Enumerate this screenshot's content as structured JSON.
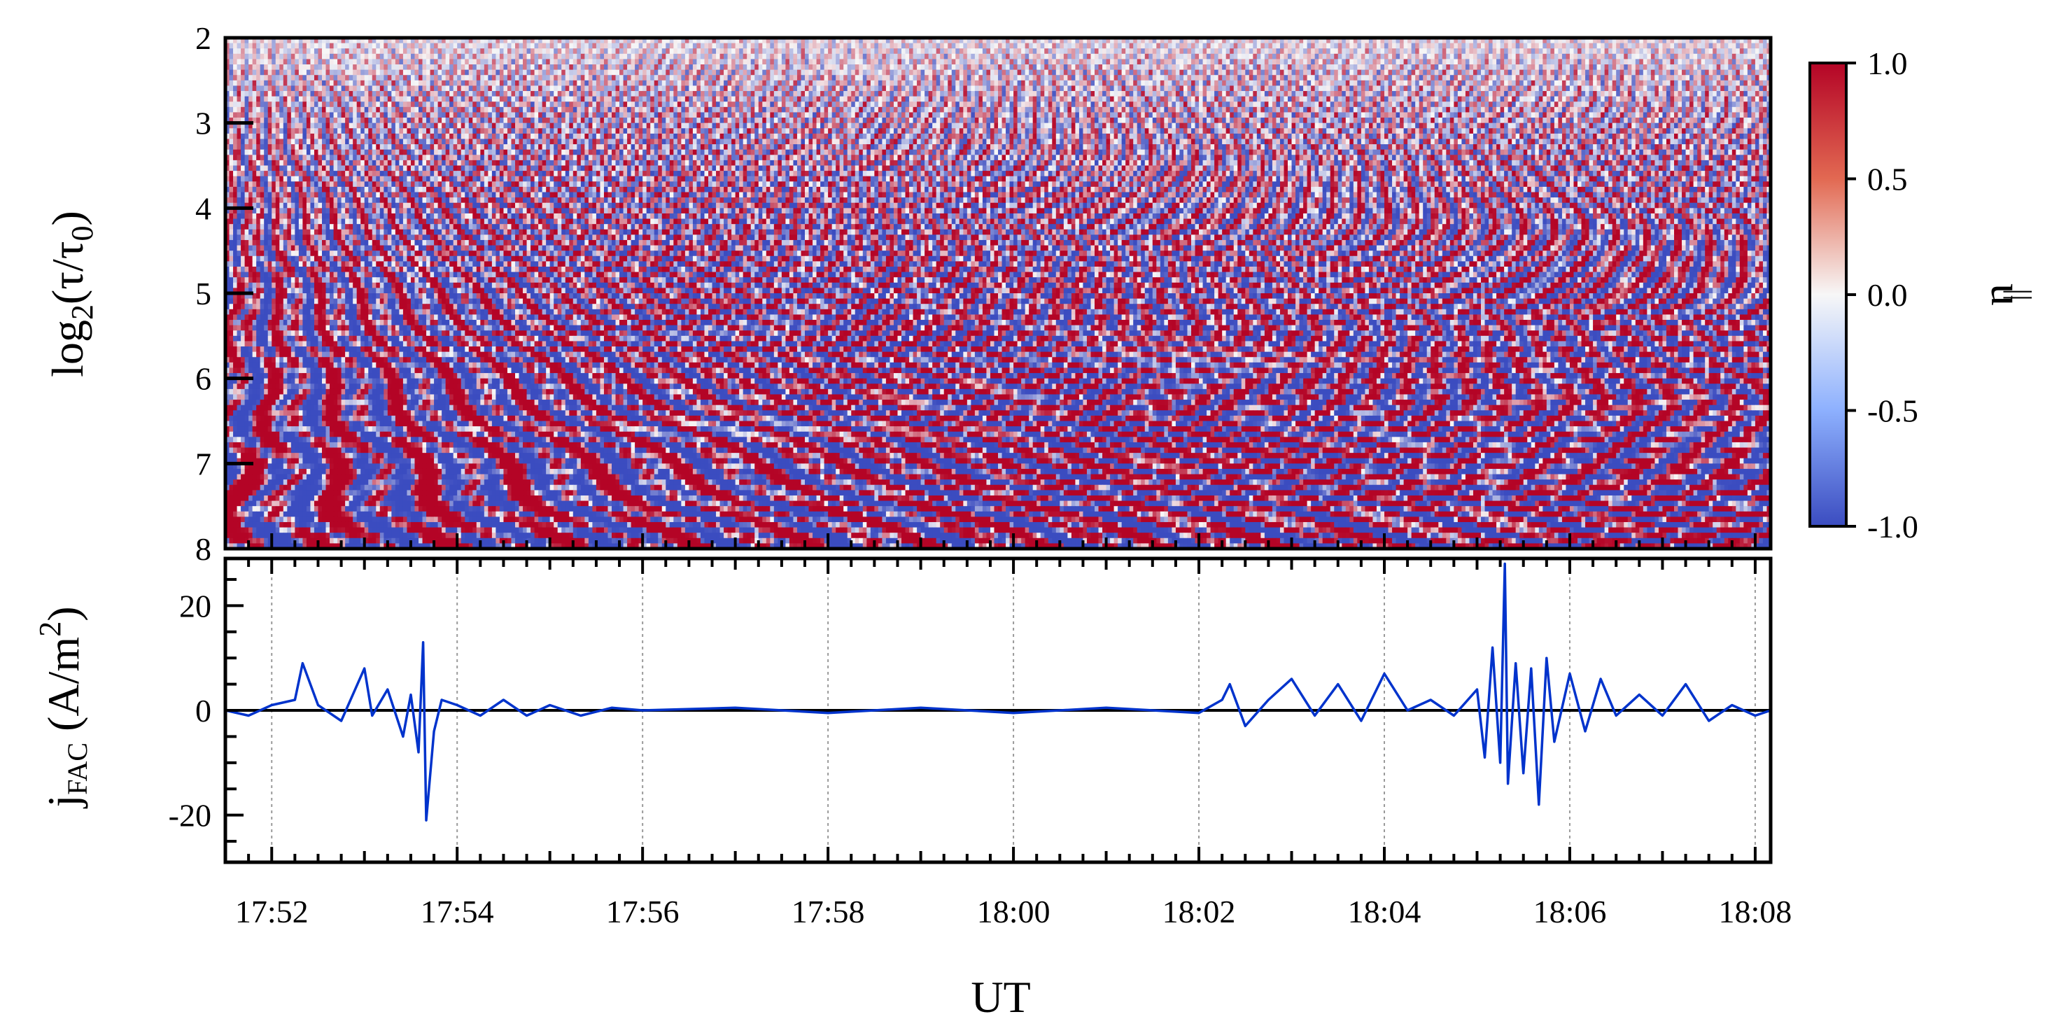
{
  "chart_data": [
    {
      "type": "heatmap",
      "title": "",
      "ylabel_main": "log",
      "ylabel_sub": "2",
      "ylabel_tail_open": "(τ/τ",
      "ylabel_tail_sub": "0",
      "ylabel_tail_close": ")",
      "yticks": [
        "2",
        "3",
        "4",
        "5",
        "6",
        "7",
        "8"
      ],
      "ylim": [
        2,
        8
      ],
      "y_inverted": true,
      "xlim": [
        "17:51:30",
        "18:08:10"
      ],
      "colorbar": {
        "label": "u",
        "label_mark": "||",
        "ticks": [
          "1.0",
          "0.5",
          "0.0",
          "-0.5",
          "-1.0"
        ],
        "range": [
          -1.0,
          1.0
        ],
        "colors": [
          "#3b4cc0",
          "#f7f7f7",
          "#b40426"
        ]
      }
    },
    {
      "type": "line",
      "title": "",
      "ylabel_main": "j",
      "ylabel_sub": "FAC",
      "ylabel_unit": "(A/m",
      "ylabel_sup": "2",
      "ylabel_close": ")",
      "xlabel": "UT",
      "xticks": [
        "17:52",
        "17:54",
        "17:56",
        "17:58",
        "18:00",
        "18:02",
        "18:04",
        "18:06",
        "18:08"
      ],
      "xlim": [
        "17:51:30",
        "18:08:10"
      ],
      "yticks": [
        "20",
        "0",
        "-20"
      ],
      "ylim": [
        -29,
        29
      ],
      "grid": "vertical dotted at major ticks",
      "color": "#0033cc",
      "series": [
        {
          "x": [
            "17:51:30",
            "17:51:45",
            "17:52:00",
            "17:52:15",
            "17:52:20",
            "17:52:30",
            "17:52:45",
            "17:53:00",
            "17:53:05",
            "17:53:15",
            "17:53:25",
            "17:53:30",
            "17:53:35",
            "17:53:38",
            "17:53:40",
            "17:53:45",
            "17:53:50",
            "17:54:00",
            "17:54:15",
            "17:54:30",
            "17:54:45",
            "17:55:00",
            "17:55:20",
            "17:55:40",
            "17:56:00",
            "17:57:00",
            "17:58:00",
            "17:59:00",
            "18:00:00",
            "18:01:00",
            "18:02:00",
            "18:02:15",
            "18:02:20",
            "18:02:30",
            "18:02:45",
            "18:03:00",
            "18:03:15",
            "18:03:30",
            "18:03:45",
            "18:04:00",
            "18:04:15",
            "18:04:30",
            "18:04:45",
            "18:05:00",
            "18:05:05",
            "18:05:10",
            "18:05:15",
            "18:05:18",
            "18:05:20",
            "18:05:25",
            "18:05:30",
            "18:05:35",
            "18:05:40",
            "18:05:45",
            "18:05:50",
            "18:06:00",
            "18:06:10",
            "18:06:20",
            "18:06:30",
            "18:06:45",
            "18:07:00",
            "18:07:15",
            "18:07:30",
            "18:07:45",
            "18:08:00",
            "18:08:10"
          ],
          "values": [
            0,
            -1,
            1,
            2,
            9,
            1,
            -2,
            8,
            -1,
            4,
            -5,
            3,
            -8,
            13,
            -21,
            -4,
            2,
            1,
            -1,
            2,
            -1,
            1,
            -1,
            0.5,
            0,
            0.5,
            -0.5,
            0.5,
            -0.5,
            0.5,
            -0.5,
            2,
            5,
            -3,
            2,
            6,
            -1,
            5,
            -2,
            7,
            0,
            2,
            -1,
            4,
            -9,
            12,
            -10,
            28,
            -14,
            9,
            -12,
            8,
            -18,
            10,
            -6,
            7,
            -4,
            6,
            -1,
            3,
            -1,
            5,
            -2,
            1,
            -1,
            0
          ]
        }
      ]
    }
  ]
}
